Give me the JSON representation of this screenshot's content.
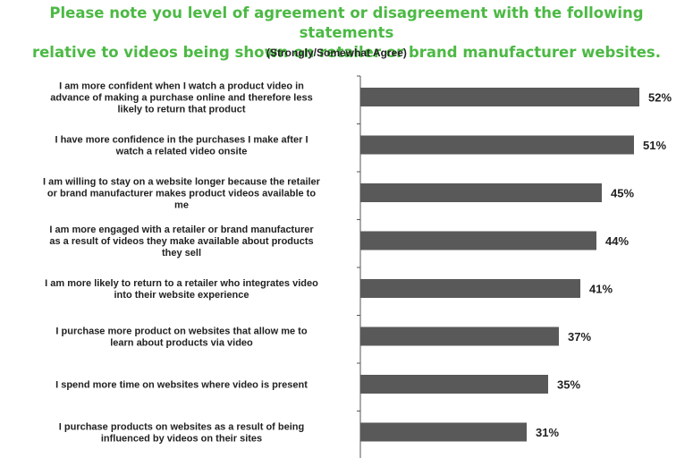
{
  "chart_data": {
    "type": "bar",
    "orientation": "horizontal",
    "title": "Please note you level of agreement or disagreement with the following statements relative to videos being shown on retailer or brand manufacturer websites.",
    "title_lines": [
      "Please note you level of agreement or disagreement with the following statements",
      "relative to videos being shown on retailer or brand manufacturer websites."
    ],
    "subtitle": "(Strongly/Somewhat Agree)",
    "categories": [
      "I am more confident when I watch a product video in advance of making a purchase online and therefore less likely to return that product",
      "I have more confidence in the purchases I make after I watch a related video onsite",
      "I am willing to stay on a website longer because the retailer or brand manufacturer makes product videos available to me",
      "I am more engaged with a retailer or brand manufacturer as a result of videos they make available about products they sell",
      "I am more likely to return to a retailer who integrates video into their website experience",
      "I purchase more product on websites that allow me to learn about products via video",
      "I spend more time on websites where video is present",
      "I purchase products on websites as a result of being influenced by videos on their sites"
    ],
    "category_lines": [
      [
        "I am more confident when I watch a product video in",
        "advance of making a purchase online and therefore less",
        "likely to return that product"
      ],
      [
        "I have more confidence in the purchases I make after I",
        "watch a related video onsite"
      ],
      [
        "I am willing to stay on a website longer because the retailer",
        "or brand manufacturer makes product videos available to",
        "me"
      ],
      [
        "I am more engaged with a retailer or brand manufacturer",
        "as a result of videos they make available about products",
        "they sell"
      ],
      [
        "I am more likely to return to a retailer who integrates video",
        "into their website experience"
      ],
      [
        "I purchase more product on websites that allow me to",
        "learn about products via video"
      ],
      [
        "I spend more time on websites where video is present"
      ],
      [
        "I purchase products on websites as a result of being",
        "influenced by videos on their sites"
      ]
    ],
    "values": [
      52,
      51,
      45,
      44,
      41,
      37,
      35,
      31
    ],
    "value_labels": [
      "52%",
      "51%",
      "45%",
      "44%",
      "41%",
      "37%",
      "35%",
      "31%"
    ],
    "unit": "%",
    "xlim": [
      0,
      100
    ],
    "bar_color": "#595959",
    "title_color": "#4cb944",
    "grid": false,
    "legend": "none"
  }
}
